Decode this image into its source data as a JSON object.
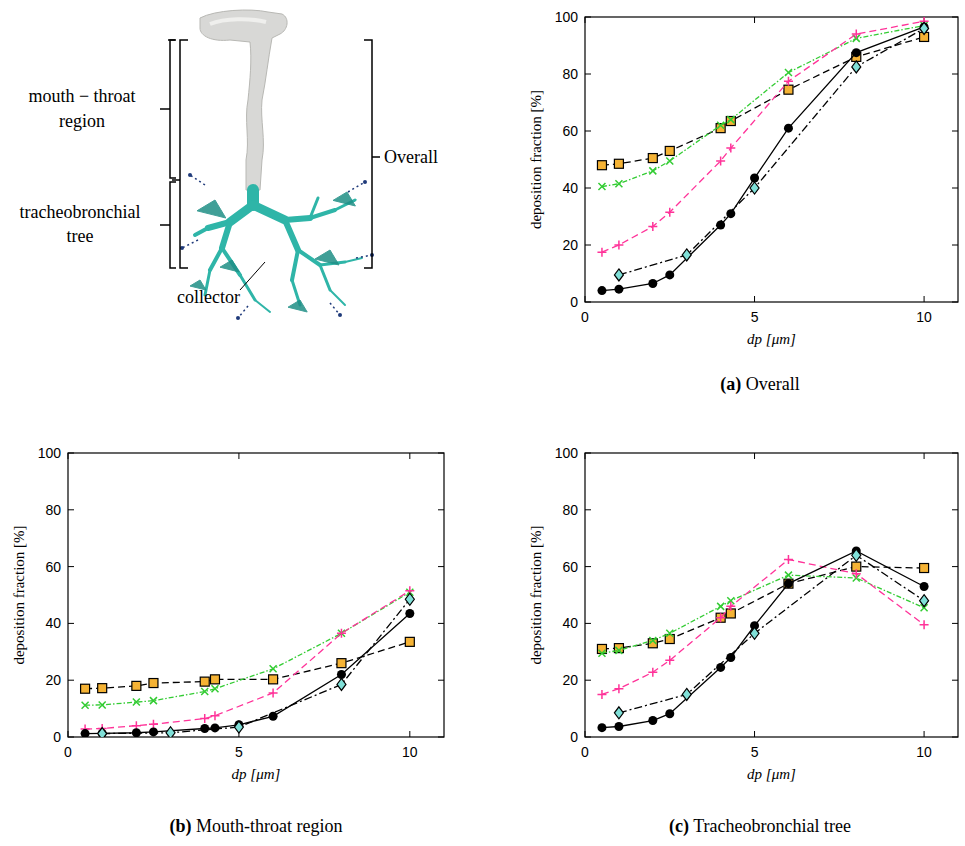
{
  "diagram": {
    "labels": {
      "mouth_throat": "mouth − throat region",
      "tracheobronchial": "tracheobronchial tree",
      "overall": "Overall",
      "collector": "collector"
    }
  },
  "chart_data": [
    {
      "type": "line",
      "title": "(a) Overall",
      "xlabel": "dp [μm]",
      "ylabel": "deposition fraction [%]",
      "xlim": [
        0,
        11
      ],
      "ylim": [
        0,
        100
      ],
      "xticks": [
        0,
        5,
        10
      ],
      "yticks": [
        0,
        20,
        40,
        60,
        80,
        100
      ],
      "series": [
        {
          "color": "#f5b335",
          "marker": "square",
          "line_style": "dashed",
          "x": [
            0.5,
            1,
            2,
            2.5,
            4,
            4.3,
            6,
            8,
            10
          ],
          "values": [
            48,
            48.5,
            50.5,
            53,
            61,
            63.5,
            74.5,
            86,
            93
          ]
        },
        {
          "color": "#33cc33",
          "marker": "x",
          "line_style": "dotted",
          "x": [
            0.5,
            1,
            2,
            2.5,
            4,
            4.3,
            6,
            8,
            10
          ],
          "values": [
            40.5,
            41.5,
            46,
            49.5,
            62,
            64,
            80.5,
            92.5,
            97
          ]
        },
        {
          "color": "#ff3399",
          "marker": "plus",
          "line_style": "dashed",
          "x": [
            0.5,
            1,
            2,
            2.5,
            4,
            4.3,
            6,
            8,
            10
          ],
          "values": [
            17.5,
            20,
            26.5,
            31.5,
            49.5,
            54,
            77.5,
            94,
            98.5
          ]
        },
        {
          "color": "#000000",
          "marker": "circle",
          "line_style": "solid",
          "x": [
            0.5,
            1,
            2,
            2.5,
            4,
            4.3,
            5,
            6,
            8,
            10
          ],
          "values": [
            4,
            4.5,
            6.5,
            9.5,
            27,
            31,
            43.5,
            61,
            87.5,
            96.5
          ]
        },
        {
          "color": "#80e0d8",
          "marker": "diamond",
          "line_style": "dashdot",
          "x": [
            1,
            3,
            5,
            8,
            10
          ],
          "values": [
            9.5,
            16.5,
            40,
            82.5,
            96
          ]
        }
      ]
    },
    {
      "type": "line",
      "title": "(b) Mouth-throat region",
      "xlabel": "dp [μm]",
      "ylabel": "deposition fraction [%]",
      "xlim": [
        0,
        11
      ],
      "ylim": [
        0,
        100
      ],
      "xticks": [
        0,
        5,
        10
      ],
      "yticks": [
        0,
        20,
        40,
        60,
        80,
        100
      ],
      "series": [
        {
          "color": "#f5b335",
          "marker": "square",
          "line_style": "dashed",
          "x": [
            0.5,
            1,
            2,
            2.5,
            4,
            4.3,
            6,
            8,
            10
          ],
          "values": [
            17,
            17.2,
            18,
            19,
            19.5,
            20.3,
            20.3,
            26,
            33.5
          ]
        },
        {
          "color": "#33cc33",
          "marker": "x",
          "line_style": "dotted",
          "x": [
            0.5,
            1,
            2,
            2.5,
            4,
            4.3,
            6,
            8,
            10
          ],
          "values": [
            11.2,
            11.3,
            12.3,
            12.8,
            16,
            17,
            24,
            36.5,
            51
          ]
        },
        {
          "color": "#ff3399",
          "marker": "plus",
          "line_style": "dashed",
          "x": [
            0.5,
            1,
            2,
            2.5,
            4,
            4.3,
            6,
            8,
            10
          ],
          "values": [
            2.8,
            3,
            4,
            4.5,
            6.5,
            7.5,
            15.5,
            36.5,
            51.5
          ]
        },
        {
          "color": "#000000",
          "marker": "circle",
          "line_style": "solid",
          "x": [
            0.5,
            1,
            2,
            2.5,
            4,
            4.3,
            5,
            6,
            8,
            10
          ],
          "values": [
            1.2,
            1.3,
            1.5,
            1.8,
            3,
            3.2,
            4.3,
            7.3,
            22,
            43.5
          ]
        },
        {
          "color": "#80e0d8",
          "marker": "diamond",
          "line_style": "dashdot",
          "x": [
            1,
            3,
            5,
            8,
            10
          ],
          "values": [
            1.2,
            1.5,
            3.5,
            18.5,
            48.5
          ]
        }
      ]
    },
    {
      "type": "line",
      "title": "(c) Tracheobronchial tree",
      "xlabel": "dp [μm]",
      "ylabel": "deposition fraction [%]",
      "xlim": [
        0,
        11
      ],
      "ylim": [
        0,
        100
      ],
      "xticks": [
        0,
        5,
        10
      ],
      "yticks": [
        0,
        20,
        40,
        60,
        80,
        100
      ],
      "series": [
        {
          "color": "#f5b335",
          "marker": "square",
          "line_style": "dashed",
          "x": [
            0.5,
            1,
            2,
            2.5,
            4,
            4.3,
            6,
            8,
            10
          ],
          "values": [
            31,
            31.3,
            33,
            34.5,
            42,
            43.5,
            54,
            60,
            59.5
          ]
        },
        {
          "color": "#33cc33",
          "marker": "x",
          "line_style": "dotted",
          "x": [
            0.5,
            1,
            2,
            2.5,
            4,
            4.3,
            6,
            8,
            10
          ],
          "values": [
            29.5,
            30.5,
            34,
            36.5,
            46,
            48,
            57,
            56,
            45.5
          ]
        },
        {
          "color": "#ff3399",
          "marker": "plus",
          "line_style": "dashed",
          "x": [
            0.5,
            1,
            2,
            2.5,
            4,
            4.3,
            6,
            8,
            10
          ],
          "values": [
            15,
            17,
            22.8,
            27,
            42,
            46,
            62.5,
            57.5,
            39.5
          ]
        },
        {
          "color": "#000000",
          "marker": "circle",
          "line_style": "solid",
          "x": [
            0.5,
            1,
            2,
            2.5,
            4,
            4.3,
            5,
            6,
            8,
            10
          ],
          "values": [
            3.3,
            3.7,
            5.8,
            8.2,
            24.5,
            28,
            39.2,
            54,
            65.5,
            53
          ]
        },
        {
          "color": "#80e0d8",
          "marker": "diamond",
          "line_style": "dashdot",
          "x": [
            1,
            3,
            5,
            8,
            10
          ],
          "values": [
            8.5,
            15,
            36.5,
            64,
            48
          ]
        }
      ]
    }
  ]
}
